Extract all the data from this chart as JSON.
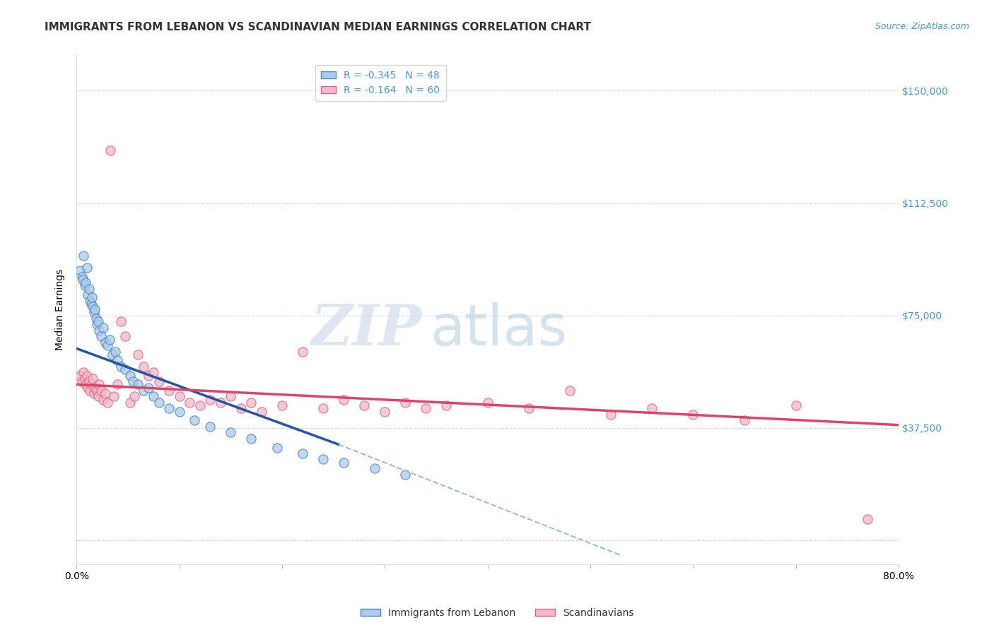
{
  "title": "IMMIGRANTS FROM LEBANON VS SCANDINAVIAN MEDIAN EARNINGS CORRELATION CHART",
  "source": "Source: ZipAtlas.com",
  "ylabel": "Median Earnings",
  "xlim": [
    0.0,
    0.8
  ],
  "ylim": [
    -8000,
    162000
  ],
  "xticks": [
    0.0,
    0.1,
    0.2,
    0.3,
    0.4,
    0.5,
    0.6,
    0.7,
    0.8
  ],
  "xticklabels": [
    "0.0%",
    "",
    "",
    "",
    "",
    "",
    "",
    "",
    "80.0%"
  ],
  "ytick_positions": [
    0,
    37500,
    75000,
    112500,
    150000
  ],
  "ytick_labels": [
    "",
    "$37,500",
    "$75,000",
    "$112,500",
    "$150,000"
  ],
  "grid_color": "#cccccc",
  "background_color": "#ffffff",
  "lebanon_color": "#aaccee",
  "scandinavian_color": "#f8b8c8",
  "lebanon_edge": "#5588bb",
  "scandinavian_edge": "#dd6688",
  "trend_lebanon_color": "#2255aa",
  "trend_scandinavian_color": "#dd4466",
  "trend_dash_color": "#99bbdd",
  "legend_r_lebanon": "R = -0.345",
  "legend_n_lebanon": "N = 48",
  "legend_r_scandinavian": "R = -0.164",
  "legend_n_scandinavian": "N = 60",
  "legend_label_lebanon": "Immigrants from Lebanon",
  "legend_label_scandinavian": "Scandinavians",
  "watermark_zip": "ZIP",
  "watermark_atlas": "atlas",
  "lebanon_x": [
    0.003,
    0.005,
    0.006,
    0.007,
    0.008,
    0.009,
    0.01,
    0.011,
    0.012,
    0.013,
    0.014,
    0.015,
    0.016,
    0.017,
    0.018,
    0.019,
    0.02,
    0.021,
    0.022,
    0.024,
    0.026,
    0.028,
    0.03,
    0.032,
    0.035,
    0.038,
    0.04,
    0.043,
    0.047,
    0.052,
    0.055,
    0.06,
    0.065,
    0.07,
    0.075,
    0.08,
    0.09,
    0.1,
    0.115,
    0.13,
    0.15,
    0.17,
    0.195,
    0.22,
    0.24,
    0.26,
    0.29,
    0.32
  ],
  "lebanon_y": [
    90000,
    88000,
    87000,
    95000,
    85000,
    86000,
    91000,
    82000,
    84000,
    80000,
    79000,
    81000,
    78000,
    76000,
    77000,
    74000,
    72000,
    73000,
    70000,
    68000,
    71000,
    66000,
    65000,
    67000,
    62000,
    63000,
    60000,
    58000,
    57000,
    55000,
    53000,
    52000,
    50000,
    51000,
    48000,
    46000,
    44000,
    43000,
    40000,
    38000,
    36000,
    34000,
    31000,
    29000,
    27000,
    26000,
    24000,
    22000
  ],
  "scandinavian_x": [
    0.003,
    0.005,
    0.007,
    0.008,
    0.009,
    0.01,
    0.011,
    0.012,
    0.013,
    0.015,
    0.016,
    0.017,
    0.018,
    0.02,
    0.021,
    0.022,
    0.024,
    0.026,
    0.028,
    0.03,
    0.033,
    0.036,
    0.04,
    0.043,
    0.047,
    0.052,
    0.056,
    0.06,
    0.065,
    0.07,
    0.075,
    0.08,
    0.09,
    0.1,
    0.11,
    0.12,
    0.13,
    0.14,
    0.15,
    0.16,
    0.17,
    0.18,
    0.2,
    0.22,
    0.24,
    0.26,
    0.28,
    0.3,
    0.32,
    0.34,
    0.36,
    0.4,
    0.44,
    0.48,
    0.52,
    0.56,
    0.6,
    0.65,
    0.7,
    0.77
  ],
  "scandinavian_y": [
    55000,
    53000,
    56000,
    54000,
    52000,
    55000,
    51000,
    53000,
    50000,
    52000,
    54000,
    49000,
    51000,
    50000,
    48000,
    52000,
    50000,
    47000,
    49000,
    46000,
    130000,
    48000,
    52000,
    73000,
    68000,
    46000,
    48000,
    62000,
    58000,
    55000,
    56000,
    53000,
    50000,
    48000,
    46000,
    45000,
    47000,
    46000,
    48000,
    44000,
    46000,
    43000,
    45000,
    63000,
    44000,
    47000,
    45000,
    43000,
    46000,
    44000,
    45000,
    46000,
    44000,
    50000,
    42000,
    44000,
    42000,
    40000,
    45000,
    7000
  ],
  "lebanon_trend_x": [
    0.0,
    0.255
  ],
  "lebanon_trend_y": [
    64000,
    32000
  ],
  "scandinavian_trend_x": [
    0.0,
    0.8
  ],
  "scandinavian_trend_y": [
    52000,
    38500
  ],
  "dash_trend_x": [
    0.255,
    0.53
  ],
  "dash_trend_y": [
    32000,
    -5000
  ],
  "title_fontsize": 11,
  "axis_label_fontsize": 10,
  "tick_fontsize": 10,
  "legend_fontsize": 10,
  "watermark_fontsize_zip": 58,
  "watermark_fontsize_atlas": 58
}
